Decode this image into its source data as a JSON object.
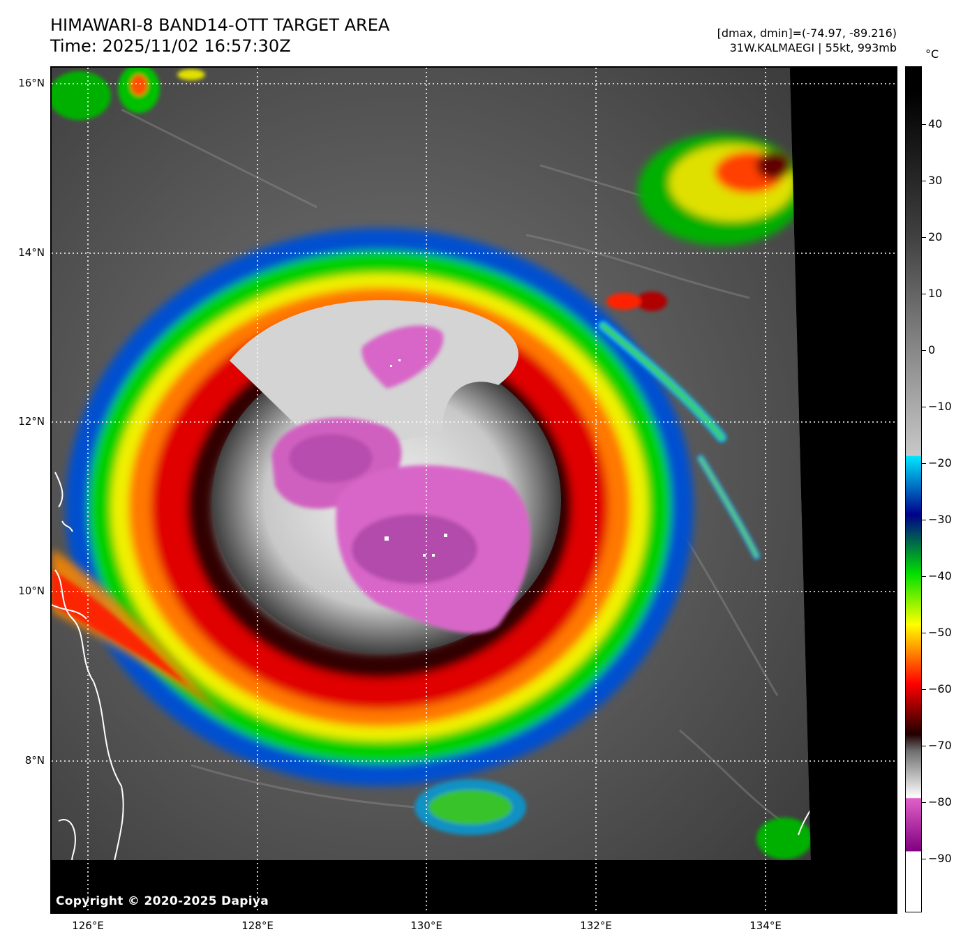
{
  "title": {
    "line1": "HIMAWARI-8 BAND14-OTT TARGET AREA",
    "line2": "Time: 2025/11/02 16:57:30Z"
  },
  "meta": {
    "range": "[dmax, dmin]=(-74.97, -89.216)",
    "storm": "31W.KALMAEGI | 55kt, 993mb"
  },
  "map": {
    "lat_labels": [
      "16°N",
      "14°N",
      "12°N",
      "10°N",
      "8°N"
    ],
    "lon_labels": [
      "126°E",
      "128°E",
      "130°E",
      "132°E",
      "134°E"
    ],
    "copyright": "Copyright © 2020-2025 Dapiya"
  },
  "colorbar": {
    "unit": "°C",
    "labels": [
      "40",
      "30",
      "20",
      "10",
      "0",
      "−10",
      "−20",
      "−30",
      "−40",
      "−50",
      "−60",
      "−70",
      "−80",
      "−90"
    ],
    "colors": {
      "warm": "#000000",
      "gray": "#9a9a9a",
      "cyan": "#00e5ff",
      "blue": "#00008b",
      "green": "#00e000",
      "yellow": "#ffff00",
      "red": "#ff0000",
      "dark": "#200000",
      "magenta": "#e060c8",
      "purple": "#800080",
      "white": "#ffffff"
    }
  }
}
